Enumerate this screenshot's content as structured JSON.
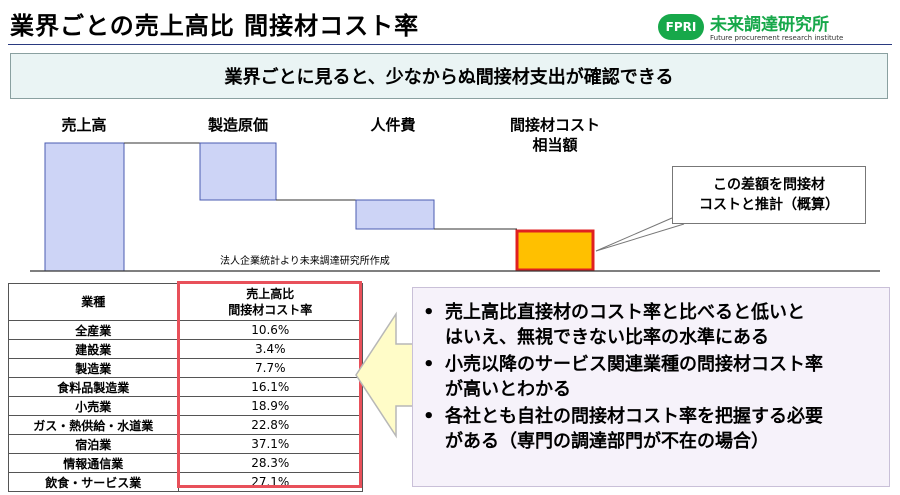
{
  "header": {
    "title": "業界ごとの売上高比 間接材コスト率",
    "logo_badge": "FPRI",
    "logo_name": "未来調達研究所",
    "logo_sub": "Future procurement research institute"
  },
  "subtitle": "業界ごとに見ると、少なからぬ間接材支出が確認できる",
  "waterfall": {
    "labels": [
      "売上高",
      "製造原価",
      "人件費",
      "間接材コスト",
      "相当額"
    ],
    "source_note": "法人企業統計より未来調達研究所作成",
    "callout_line1": "この差額を問接材",
    "callout_line2": "コストと推計（概算）",
    "colors": {
      "blue_fill": "#cdd4f6",
      "blue_stroke": "#4a5bb0",
      "highlight_fill": "#ffc000",
      "highlight_stroke": "#e02020"
    }
  },
  "table": {
    "col_industry": "業種",
    "col_ratio_line1": "売上高比",
    "col_ratio_line2": "間接材コスト率",
    "rows": [
      {
        "industry": "全産業",
        "ratio": "10.6%"
      },
      {
        "industry": "建設業",
        "ratio": "3.4%"
      },
      {
        "industry": "製造業",
        "ratio": "7.7%"
      },
      {
        "industry": "食料品製造業",
        "ratio": "16.1%"
      },
      {
        "industry": "小売業",
        "ratio": "18.9%"
      },
      {
        "industry": "ガス・熱供給・水道業",
        "ratio": "22.8%"
      },
      {
        "industry": "宿泊業",
        "ratio": "37.1%"
      },
      {
        "industry": "情報通信業",
        "ratio": "28.3%"
      },
      {
        "industry": "飲食・サービス業",
        "ratio": "27.1%"
      }
    ]
  },
  "bullets": {
    "marker": "•",
    "items": [
      {
        "line1": "売上高比直接材のコスト率と比べると低いと",
        "line2": "はいえ、無視できない比率の水準にある"
      },
      {
        "line1": "小売以降のサービス関連業種の問接材コスト率",
        "line2": "が高いとわかる"
      },
      {
        "line1": "各社とも自社の問接材コスト率を把握する必要",
        "line2": "がある（専門の調達部門が不在の場合）"
      }
    ]
  }
}
